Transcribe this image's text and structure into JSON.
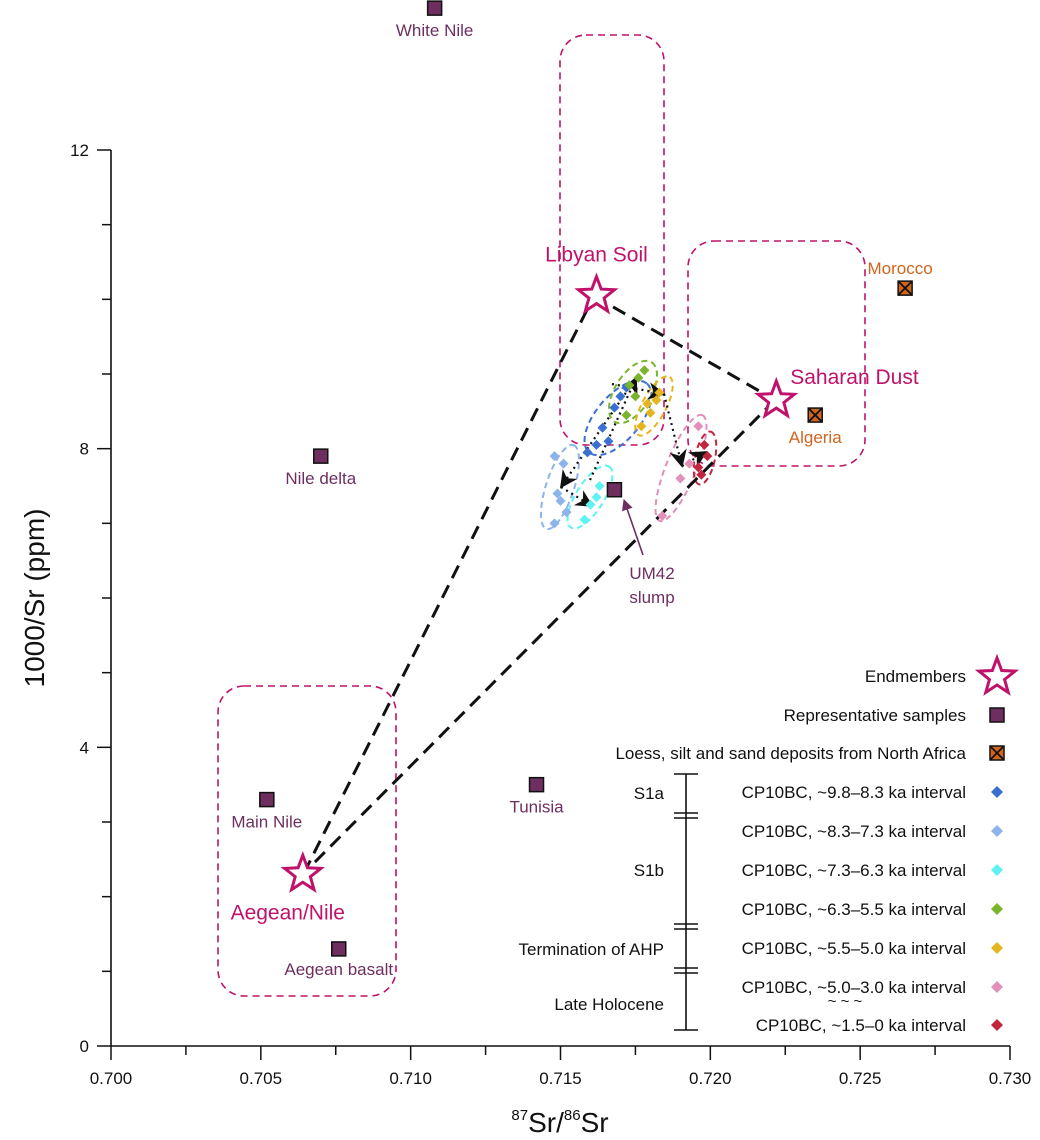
{
  "chart_data": {
    "type": "scatter",
    "xlabel_sup1": "87",
    "xlabel_part1": "Sr/",
    "xlabel_sup2": "86",
    "xlabel_part2": "Sr",
    "ylabel": "1000/Sr (ppm)",
    "xlim": [
      0.7,
      0.73
    ],
    "ylim": [
      0,
      14
    ],
    "x_ticks": [
      0.7,
      0.705,
      0.71,
      0.715,
      0.72,
      0.725,
      0.73
    ],
    "x_tick_labels": [
      "0.700",
      "0.705",
      "0.710",
      "0.715",
      "0.720",
      "0.725",
      "0.730"
    ],
    "y_ticks": [
      0,
      4,
      8,
      12
    ],
    "y_tick_labels": [
      "0",
      "4",
      "8",
      "12"
    ],
    "endmembers": [
      {
        "label": "Libyan Soil",
        "x": 0.7162,
        "y": 10.05
      },
      {
        "label": "Saharan Dust",
        "x": 0.7222,
        "y": 8.65
      },
      {
        "label": "Aegean/Nile",
        "x": 0.7064,
        "y": 2.3
      }
    ],
    "representative_samples": [
      {
        "label": "White Nile",
        "x": 0.7108,
        "y": 13.9
      },
      {
        "label": "Nile delta",
        "x": 0.707,
        "y": 7.9
      },
      {
        "label": "Main Nile",
        "x": 0.7052,
        "y": 3.3
      },
      {
        "label": "Aegean basalt",
        "x": 0.7076,
        "y": 1.3
      },
      {
        "label": "Tunisia",
        "x": 0.7142,
        "y": 3.5
      },
      {
        "label": "UM42",
        "label2": "slump",
        "x": 0.7168,
        "y": 7.45
      }
    ],
    "north_africa_deposits": [
      {
        "label": "Morocco",
        "x": 0.7265,
        "y": 10.15
      },
      {
        "label": "Algeria",
        "x": 0.7235,
        "y": 8.45
      }
    ],
    "cp10bc_series": [
      {
        "name": "CP10BC, ~9.8–8.3 ka interval",
        "color": "#3a6fd4",
        "points": [
          [
            0.7159,
            7.95
          ],
          [
            0.7162,
            8.05
          ],
          [
            0.7164,
            8.28
          ],
          [
            0.7166,
            8.1
          ],
          [
            0.7168,
            8.55
          ],
          [
            0.717,
            8.7
          ],
          [
            0.7172,
            8.82
          ]
        ]
      },
      {
        "name": "CP10BC, ~8.3–7.3 ka interval",
        "color": "#8cb3ea",
        "points": [
          [
            0.7148,
            7.9
          ],
          [
            0.7151,
            7.8
          ],
          [
            0.7149,
            7.4
          ],
          [
            0.715,
            7.3
          ],
          [
            0.7148,
            7.0
          ],
          [
            0.7152,
            7.15
          ]
        ]
      },
      {
        "name": "CP10BC, ~7.3–6.3 ka interval",
        "color": "#5ef2f2",
        "points": [
          [
            0.7158,
            7.05
          ],
          [
            0.716,
            7.25
          ],
          [
            0.7162,
            7.35
          ],
          [
            0.7163,
            7.5
          ]
        ]
      },
      {
        "name": "CP10BC, ~6.3–5.5 ka interval",
        "color": "#7ab42c",
        "points": [
          [
            0.7172,
            8.45
          ],
          [
            0.7175,
            8.7
          ],
          [
            0.7176,
            8.95
          ],
          [
            0.7178,
            9.05
          ],
          [
            0.7173,
            8.85
          ]
        ]
      },
      {
        "name": "CP10BC, ~5.5–5.0 ka interval",
        "color": "#e3b51e",
        "points": [
          [
            0.7177,
            8.3
          ],
          [
            0.718,
            8.48
          ],
          [
            0.7182,
            8.65
          ],
          [
            0.7183,
            8.75
          ],
          [
            0.7179,
            8.6
          ]
        ]
      },
      {
        "name": "CP10BC, ~5.0–3.0 ka interval",
        "color": "#e28fba",
        "points": [
          [
            0.7184,
            7.1
          ],
          [
            0.719,
            7.6
          ],
          [
            0.7193,
            7.8
          ],
          [
            0.7196,
            8.3
          ]
        ]
      },
      {
        "name": "CP10BC, ~1.5–0 ka interval",
        "color": "#c0263e",
        "points": [
          [
            0.7196,
            7.75
          ],
          [
            0.7198,
            8.05
          ],
          [
            0.7199,
            7.9
          ],
          [
            0.7197,
            7.65
          ]
        ]
      }
    ],
    "legend": {
      "endmembers": "Endmembers",
      "representative": "Representative samples",
      "deposits": "Loess, silt and sand deposits from North Africa",
      "groups": [
        {
          "label": "S1a"
        },
        {
          "label": "S1b"
        },
        {
          "label": "Termination of AHP"
        },
        {
          "label": "Late Holocene"
        }
      ],
      "tilde": "~ ~ ~"
    },
    "colors": {
      "endmember": "#c0126a",
      "sample": "#6e2f60",
      "deposit": "#d0651e",
      "dashed_box": "#c0126a"
    }
  }
}
